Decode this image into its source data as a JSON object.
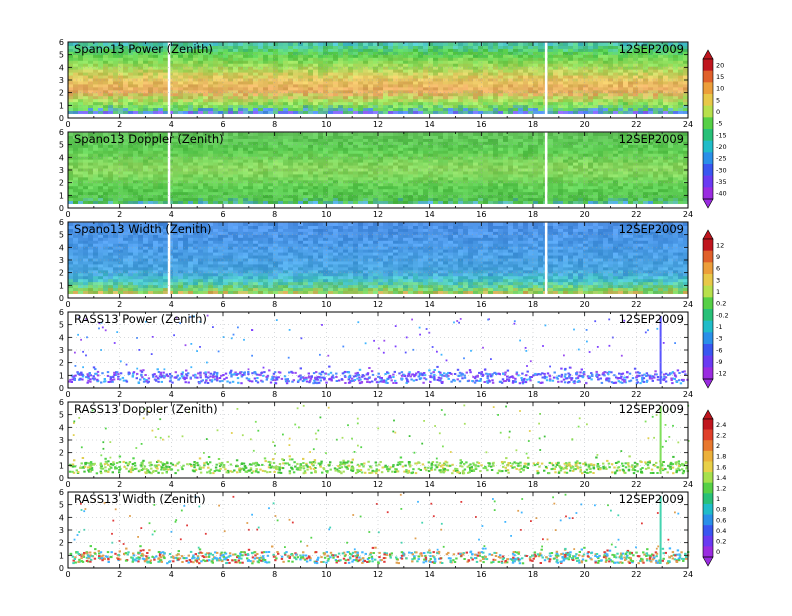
{
  "chart_data": {
    "type": "heatmap",
    "x_range": [
      0,
      24
    ],
    "x_ticks": [
      "0",
      "2",
      "4",
      "6",
      "8",
      "10",
      "12",
      "14",
      "16",
      "18",
      "20",
      "22",
      "24"
    ],
    "y_range": [
      0,
      6
    ],
    "y_ticks": [
      "0",
      "1",
      "2",
      "3",
      "4",
      "5",
      "6"
    ],
    "grid": true,
    "panels": [
      {
        "title": "Spano13 Power (Zenith)",
        "date": "12SEP2009",
        "kind": "dense",
        "colorbar": 0,
        "profile": [
          [
            0,
            "#a855f7"
          ],
          [
            0.3,
            "#4f8cff"
          ],
          [
            0.7,
            "#66d85a"
          ],
          [
            1.2,
            "#a6e55f"
          ],
          [
            2,
            "#e8a860"
          ],
          [
            3,
            "#e6c860"
          ],
          [
            4,
            "#9ddc5a"
          ],
          [
            5,
            "#58d04f"
          ],
          [
            6,
            "#48c2d0"
          ]
        ],
        "gaps": [
          3.9,
          18.5
        ]
      },
      {
        "title": "Spano13 Doppler (Zenith)",
        "date": "12SEP2009",
        "kind": "dense",
        "colorbar": 0,
        "profile": [
          [
            0,
            "#4fa8ff"
          ],
          [
            0.5,
            "#54c24c"
          ],
          [
            1.5,
            "#5ccd52"
          ],
          [
            3,
            "#8fd860"
          ],
          [
            4.5,
            "#5ccd52"
          ],
          [
            6,
            "#62c05a"
          ]
        ],
        "gaps": [
          3.9,
          18.5
        ]
      },
      {
        "title": "Spano13 Width (Zenith)",
        "date": "12SEP2009",
        "kind": "dense",
        "colorbar": 1,
        "profile": [
          [
            0,
            "#e6a858"
          ],
          [
            0.5,
            "#7fd65c"
          ],
          [
            1.2,
            "#48c8c8"
          ],
          [
            2,
            "#4aa6e0"
          ],
          [
            4,
            "#4b9be8"
          ],
          [
            6,
            "#4d8fe6"
          ]
        ],
        "gaps": [
          3.9,
          18.5
        ]
      },
      {
        "title": "RASS13 Power (Zenith)",
        "date": "12SEP2009",
        "kind": "sparse",
        "colorbar": 1,
        "palette": [
          "#7f3fff",
          "#5a55ff",
          "#4a8cff",
          "#3fb5ff",
          "#9a4cf0"
        ],
        "spike": 22.9
      },
      {
        "title": "RASS13 Doppler (Zenith)",
        "date": "12SEP2009",
        "kind": "sparse",
        "colorbar": 2,
        "palette": [
          "#54d44a",
          "#7fe05a",
          "#3fc23a",
          "#a8e060",
          "#e0d050"
        ],
        "spike": 22.9
      },
      {
        "title": "RASS13 Width (Zenith)",
        "date": "12SEP2009",
        "kind": "sparse",
        "colorbar": 2,
        "palette": [
          "#3fb5ff",
          "#44d4b0",
          "#54d44a",
          "#e0a050",
          "#e03a3a"
        ],
        "spike": 22.9
      }
    ],
    "colorbars": [
      {
        "labels": [
          "20",
          "15",
          "10",
          "5",
          "0",
          "-5",
          "-15",
          "-20",
          "-25",
          "-30",
          "-35",
          "-40"
        ],
        "colors": [
          "#c0161e",
          "#e0602a",
          "#ec9e3a",
          "#e8c848",
          "#b8e04c",
          "#56d046",
          "#28c078",
          "#20bcc8",
          "#2a8fe8",
          "#3a56f0",
          "#6a3af2",
          "#9a2ce0"
        ]
      },
      {
        "labels": [
          "12",
          "9",
          "6",
          "3",
          "1",
          "0.2",
          "-0.2",
          "-1",
          "-3",
          "-6",
          "-9",
          "-12"
        ],
        "colors": [
          "#c0161e",
          "#e0602a",
          "#ec9e3a",
          "#e8c848",
          "#b8e04c",
          "#56d046",
          "#28c078",
          "#20bcc8",
          "#2a8fe8",
          "#3a56f0",
          "#6a3af2",
          "#9a2ce0"
        ]
      },
      {
        "labels": [
          "2.4",
          "2.2",
          "2",
          "1.8",
          "1.6",
          "1.4",
          "1.2",
          "1",
          "0.8",
          "0.6",
          "0.4",
          "0.2",
          "0"
        ],
        "colors": [
          "#c0161e",
          "#e0402a",
          "#e8782e",
          "#ecb03a",
          "#e8d048",
          "#a6e04c",
          "#56d046",
          "#28c078",
          "#20bcc8",
          "#2a8fe8",
          "#3a56f0",
          "#6a3af2",
          "#9a2ce0"
        ]
      }
    ]
  }
}
